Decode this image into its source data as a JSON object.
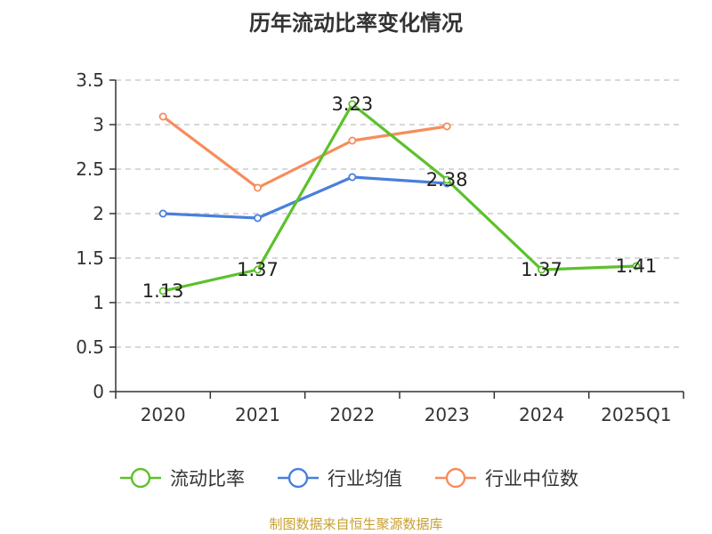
{
  "chart_data": {
    "type": "line",
    "title": "历年流动比率变化情况",
    "categories": [
      "2020",
      "2021",
      "2022",
      "2023",
      "2024",
      "2025Q1"
    ],
    "ylim": [
      0,
      3.5
    ],
    "yticks": [
      0,
      0.5,
      1,
      1.5,
      2,
      2.5,
      3,
      3.5
    ],
    "ytick_labels": [
      "0",
      "0.5",
      "1",
      "1.5",
      "2",
      "2.5",
      "3",
      "3.5"
    ],
    "grid": true,
    "legend_position": "bottom",
    "series": [
      {
        "name": "流动比率",
        "color": "#5cc12b",
        "values": [
          1.13,
          1.37,
          3.23,
          2.38,
          1.37,
          1.41
        ],
        "labels": [
          "1.13",
          "1.37",
          "3.23",
          "2.38",
          "1.37",
          "1.41"
        ]
      },
      {
        "name": "行业均值",
        "color": "#4a7fdc",
        "values": [
          2.0,
          1.95,
          2.41,
          2.34,
          null,
          null
        ]
      },
      {
        "name": "行业中位数",
        "color": "#f78c5b",
        "values": [
          3.09,
          2.29,
          2.82,
          2.98,
          null,
          null
        ]
      }
    ],
    "source": "制图数据来自恒生聚源数据库"
  }
}
